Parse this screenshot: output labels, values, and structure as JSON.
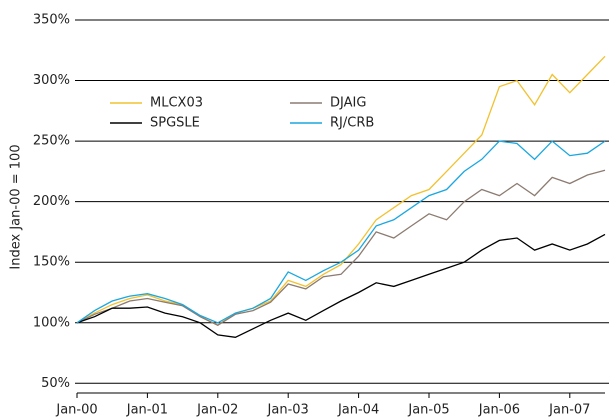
{
  "chart_data": {
    "type": "line",
    "y_label": "Index Jan-00 = 100",
    "categories": [
      "Jan-00",
      null,
      null,
      null,
      "Jan-01",
      null,
      null,
      null,
      "Jan-02",
      null,
      null,
      null,
      "Jan-03",
      null,
      null,
      null,
      "Jan-04",
      null,
      null,
      null,
      "Jan-05",
      null,
      null,
      null,
      "Jan-06",
      null,
      null,
      null,
      "Jan-07",
      null,
      null
    ],
    "series": [
      {
        "name": "MLCX03",
        "color": "#f2c12e",
        "values": [
          100,
          108,
          115,
          120,
          123,
          118,
          115,
          105,
          98,
          108,
          112,
          118,
          135,
          130,
          140,
          148,
          165,
          185,
          195,
          205,
          210,
          225,
          240,
          255,
          295,
          300,
          280,
          305,
          290,
          305,
          320
        ]
      },
      {
        "name": "DJAIG",
        "color": "#8c7b70",
        "values": [
          100,
          107,
          112,
          118,
          120,
          117,
          114,
          105,
          98,
          107,
          110,
          117,
          132,
          128,
          138,
          140,
          155,
          175,
          170,
          180,
          190,
          185,
          200,
          210,
          205,
          215,
          205,
          220,
          215,
          222,
          226
        ]
      },
      {
        "name": "SPGSLE",
        "color": "#000000",
        "values": [
          100,
          105,
          112,
          112,
          113,
          108,
          105,
          100,
          90,
          88,
          95,
          102,
          108,
          102,
          110,
          118,
          125,
          133,
          130,
          135,
          140,
          145,
          150,
          160,
          168,
          170,
          160,
          165,
          160,
          165,
          173
        ]
      },
      {
        "name": "RJ/CRB",
        "color": "#1aa7e0",
        "values": [
          100,
          110,
          118,
          122,
          124,
          120,
          115,
          106,
          100,
          108,
          112,
          120,
          142,
          135,
          143,
          150,
          160,
          180,
          185,
          195,
          205,
          210,
          225,
          235,
          250,
          248,
          235,
          250,
          238,
          240,
          250
        ]
      }
    ],
    "ylim": [
      42,
      350
    ],
    "yticks": [
      {
        "value": 50,
        "label": "50%"
      },
      {
        "value": 100,
        "label": "100%"
      },
      {
        "value": 150,
        "label": "150%"
      },
      {
        "value": 200,
        "label": "200%"
      },
      {
        "value": 250,
        "label": "250%"
      },
      {
        "value": 300,
        "label": "300%"
      },
      {
        "value": 350,
        "label": "350%"
      }
    ],
    "grid": true
  }
}
